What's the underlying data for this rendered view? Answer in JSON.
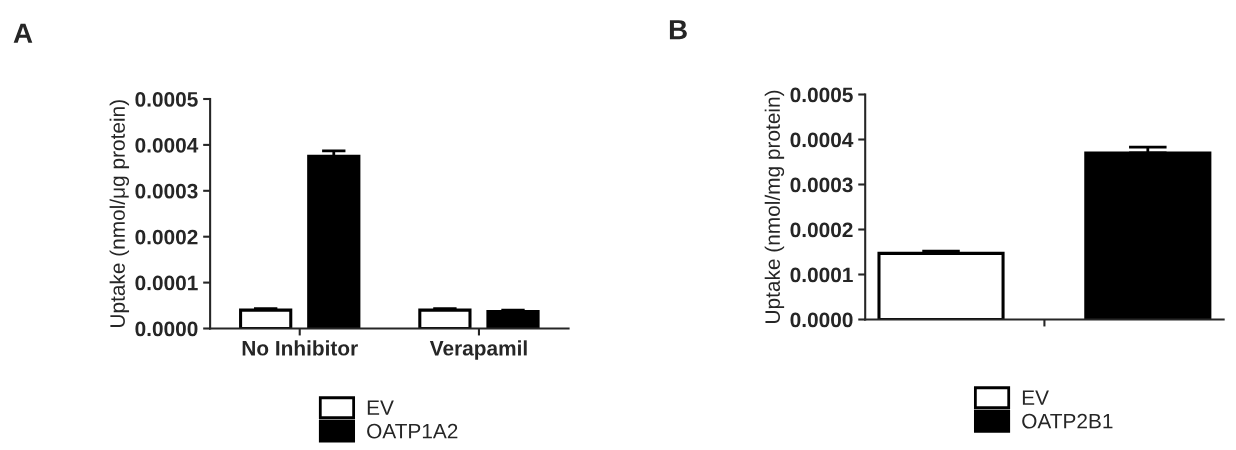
{
  "chart_data": [
    {
      "type": "bar",
      "title": "A",
      "ylabel": "Uptake (nmol/μg protein)",
      "categories": [
        "No Inhibitor",
        "Verapamil"
      ],
      "series": [
        {
          "name": "EV",
          "color": "#ffffff",
          "values": [
            4e-05,
            4e-05
          ],
          "errors": [
            [
              4e-05,
              4.3e-05
            ],
            [
              4e-05,
              4.3e-05
            ]
          ]
        },
        {
          "name": "OATP1A2",
          "color": "#000000",
          "values": [
            0.000375,
            3.7e-05
          ],
          "errors": [
            [
              0.000375,
              0.000387
            ],
            [
              3.7e-05,
              4e-05
            ]
          ]
        }
      ],
      "ylim": [
        0,
        0.0005
      ],
      "yticks": [
        {
          "value": 0,
          "label": "0.0000"
        },
        0.0001,
        0.0002,
        0.0003,
        0.0004,
        0.0005
      ],
      "grid": false,
      "legend": "bottom"
    },
    {
      "type": "bar",
      "title": "B",
      "ylabel": "Uptake (nmol/mg protein)",
      "categories": [
        null
      ],
      "series": [
        {
          "name": "EV",
          "color": "#ffffff",
          "values": [
            0.000147
          ],
          "errors": [
            [
              0.000147,
              0.000152
            ]
          ]
        },
        {
          "name": "OATP2B1",
          "color": "#000000",
          "values": [
            0.00037
          ],
          "errors": [
            [
              0.00037,
              0.000383
            ]
          ]
        }
      ],
      "ylim": [
        0,
        0.0005
      ],
      "yticks": [
        {
          "value": 0,
          "label": "0.0000"
        },
        0.0001,
        0.0002,
        0.0003,
        0.0004,
        0.0005
      ],
      "grid": false,
      "legend": "bottom"
    }
  ]
}
